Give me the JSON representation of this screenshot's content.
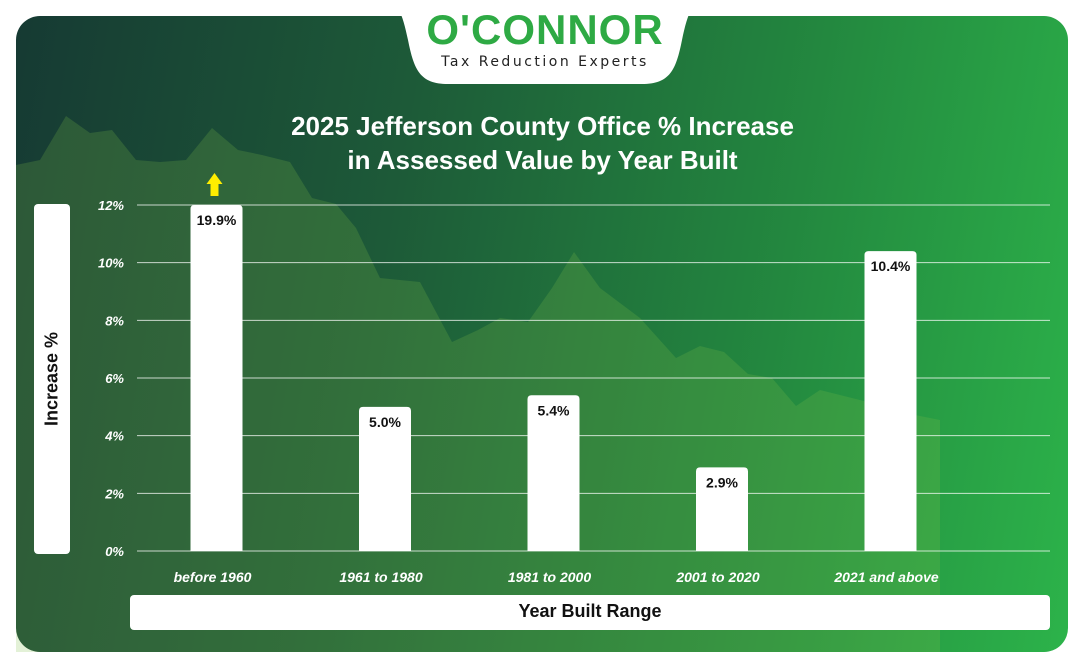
{
  "brand": {
    "logo_text": "O'CONNOR",
    "tagline": "Tax Reduction Experts",
    "color": "#2eaa44"
  },
  "chart_data": {
    "type": "bar",
    "title": "2025 Jefferson County Office % Increase",
    "subtitle": "in Assessed Value by Year Built",
    "xlabel": "Year Built Range",
    "ylabel": "Increase %",
    "categories": [
      "before 1960",
      "1961 to 1980",
      "1981 to 2000",
      "2001 to 2020",
      "2021 and above"
    ],
    "values": [
      19.9,
      5.0,
      5.4,
      2.9,
      10.4
    ],
    "data_labels": [
      "19.9%",
      "5.0%",
      "5.4%",
      "2.9%",
      "10.4%"
    ],
    "ylim": [
      0,
      12
    ],
    "yticks": [
      0,
      2,
      4,
      6,
      8,
      10,
      12
    ],
    "ytick_labels": [
      "0%",
      "2%",
      "4%",
      "6%",
      "8%",
      "10%",
      "12%"
    ],
    "grid": true,
    "overflow_indicator": {
      "category": "before 1960",
      "color": "#ffee00",
      "icon": "up-arrow-icon"
    },
    "bar_color": "#ffffff",
    "background_colors": [
      "#163a33",
      "#2cb34a"
    ]
  }
}
